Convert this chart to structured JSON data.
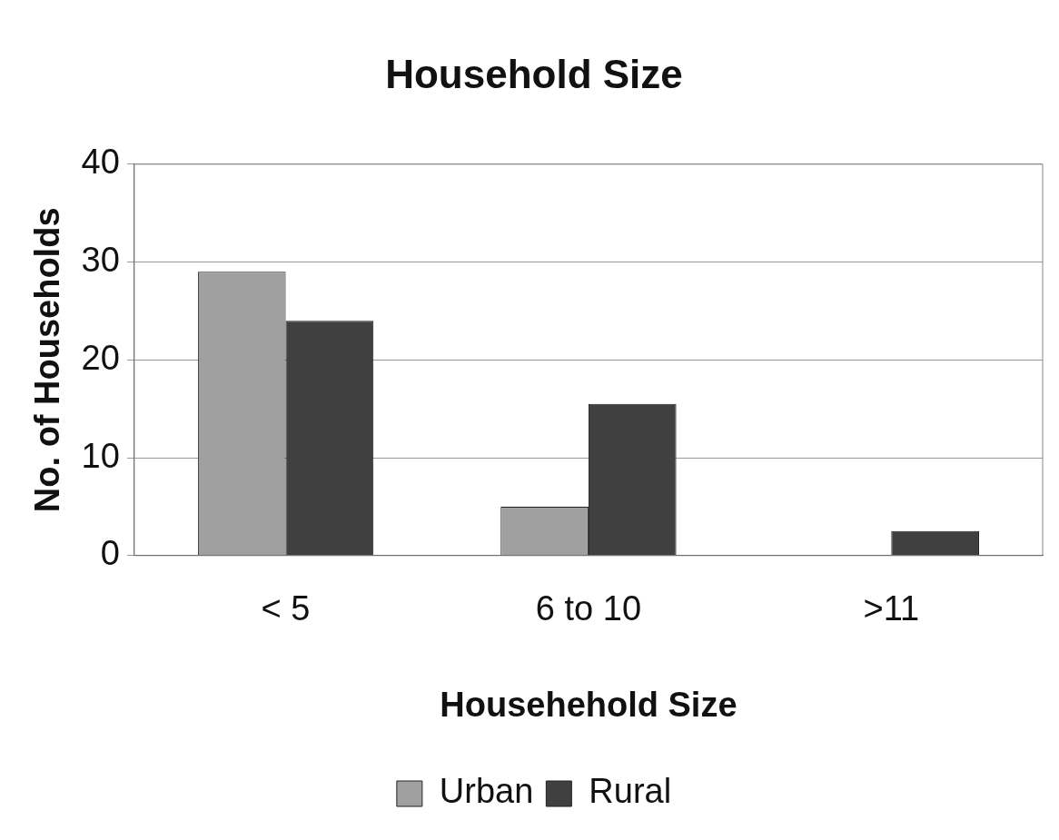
{
  "chart_data": {
    "type": "bar",
    "title": "Household Size",
    "xlabel": "Househehold Size",
    "ylabel": "No. of Households",
    "categories": [
      "< 5",
      "6 to 10",
      ">11"
    ],
    "series": [
      {
        "name": "Urban",
        "color": "#a0a0a0",
        "values": [
          29,
          5,
          0
        ]
      },
      {
        "name": "Rural",
        "color": "#404040",
        "values": [
          24,
          15.5,
          2.5
        ]
      }
    ],
    "ylim": [
      0,
      40
    ],
    "yticks": [
      0,
      10,
      20,
      30,
      40
    ],
    "grid": "y",
    "legend": "bottom"
  }
}
